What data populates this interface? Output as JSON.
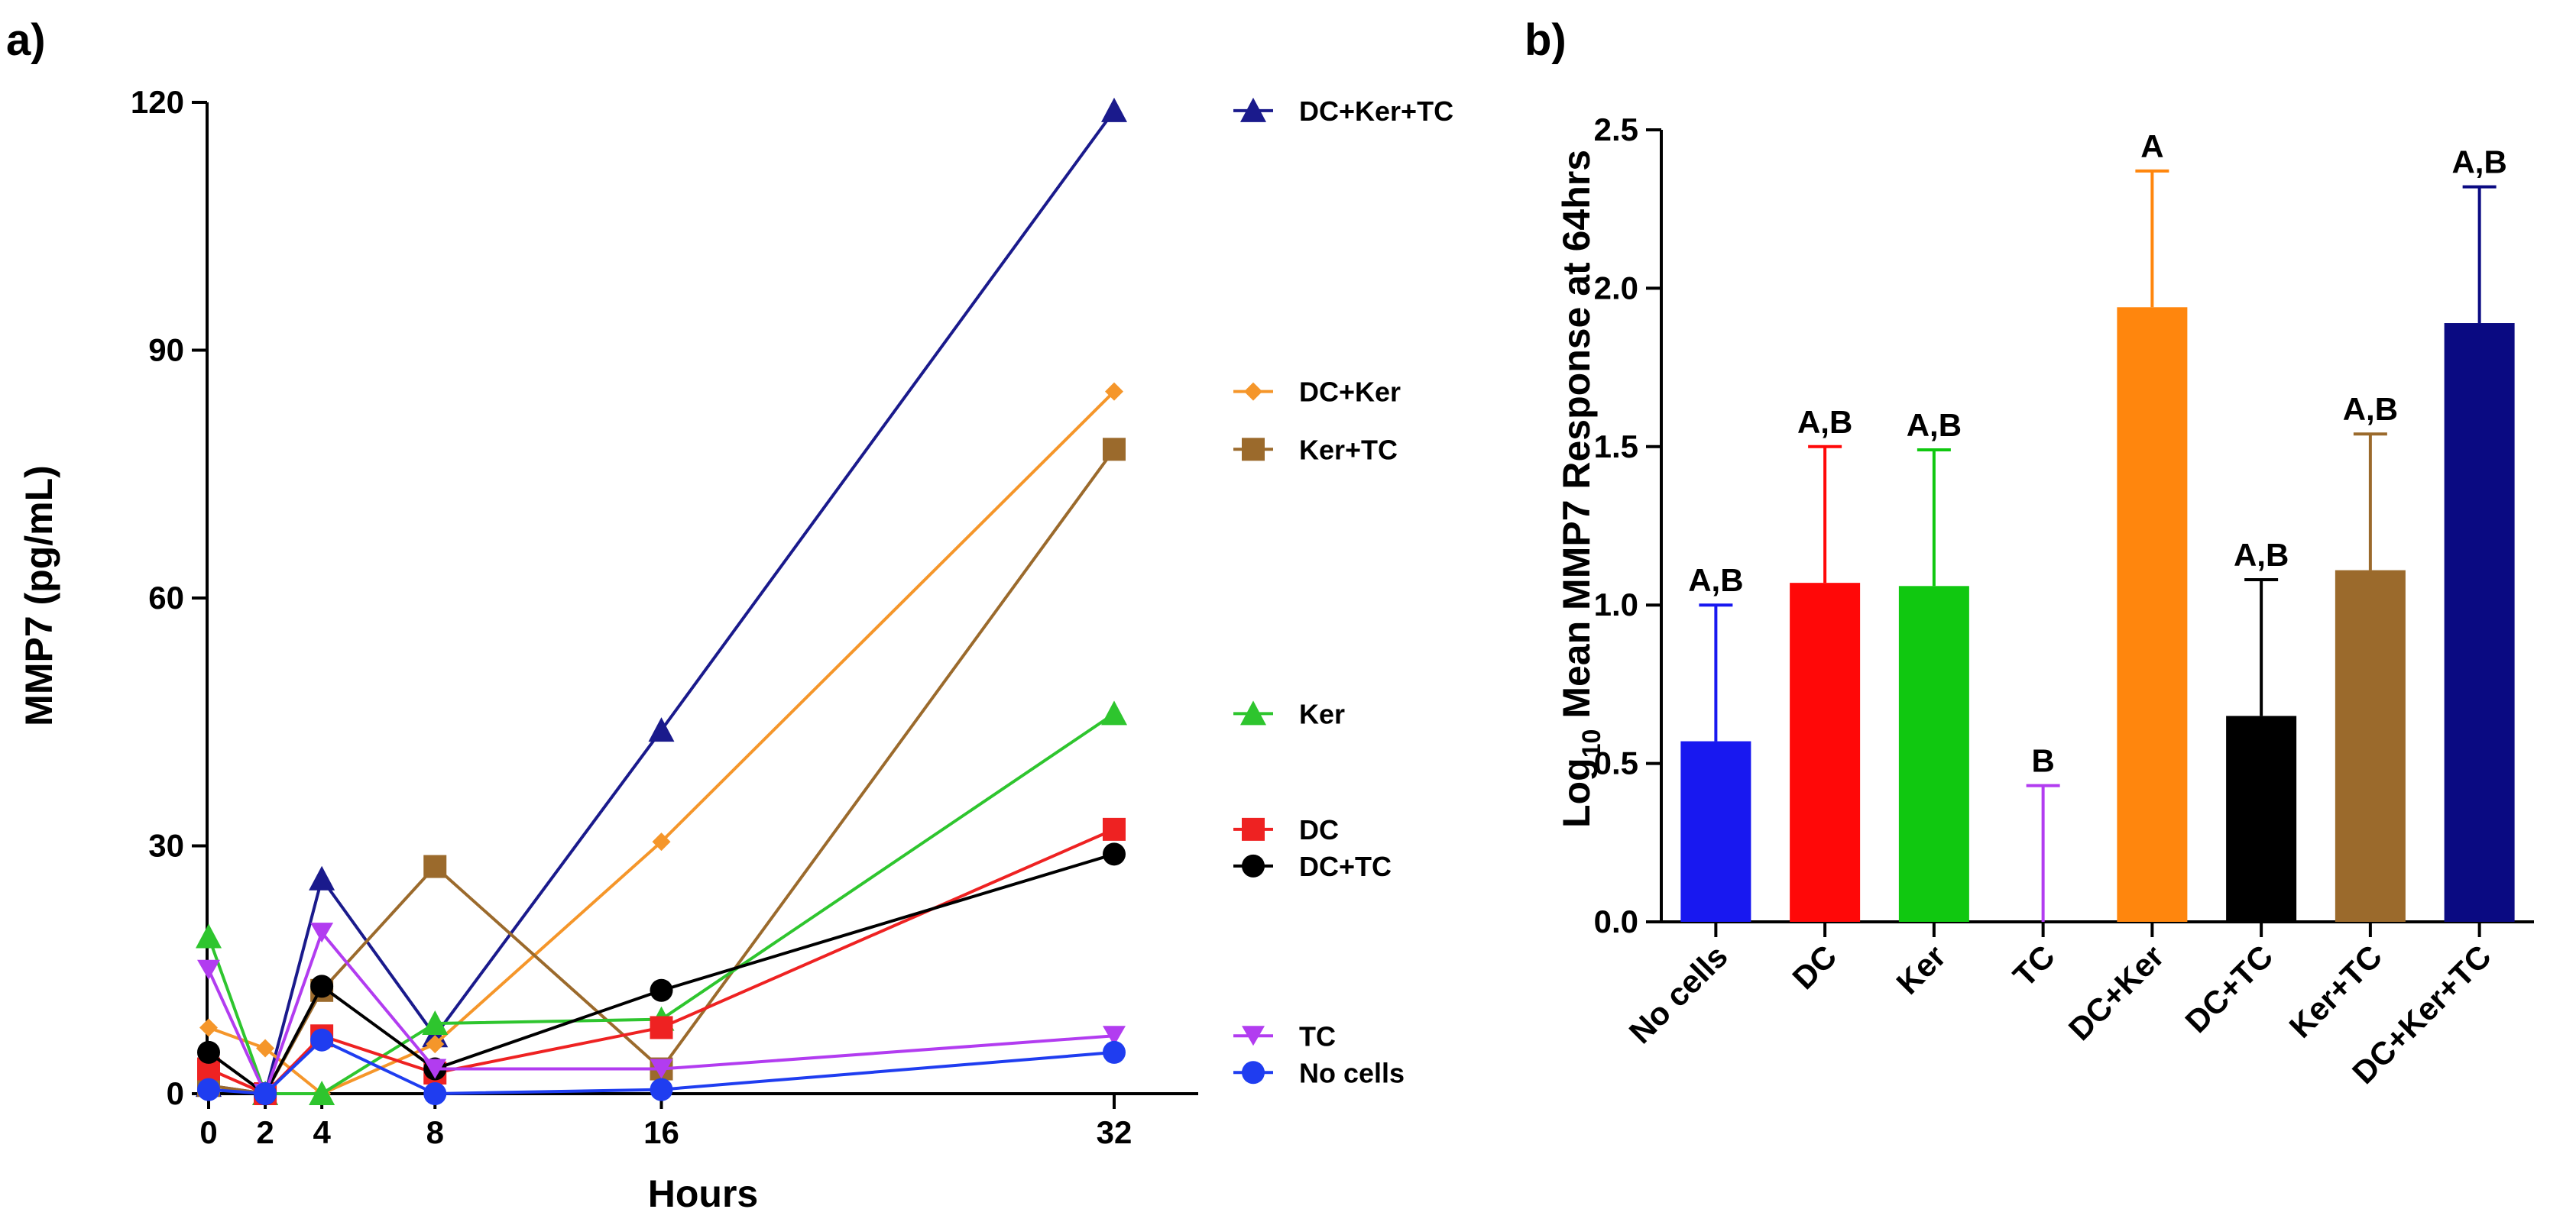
{
  "chart_data": [
    {
      "type": "line",
      "panel_label": "a)",
      "xlabel": "Hours",
      "ylabel": "MMP7 (pg/mL)",
      "x": [
        0,
        2,
        4,
        8,
        16,
        32
      ],
      "x_ticks": [
        "0",
        "2",
        "4",
        "8",
        "16",
        "32"
      ],
      "y_ticks": [
        "0",
        "30",
        "60",
        "90",
        "120"
      ],
      "ylim": [
        0,
        120
      ],
      "legend_placement": "right",
      "series": [
        {
          "name": "DC+Ker+TC",
          "color": "#1a1a8c",
          "marker": "triangle",
          "values": [
            1,
            0,
            26,
            7,
            44,
            119
          ]
        },
        {
          "name": "DC+Ker",
          "color": "#f5962a",
          "marker": "diamond",
          "values": [
            8,
            5.5,
            0,
            6,
            30.5,
            85
          ]
        },
        {
          "name": "Ker+TC",
          "color": "#9b6a2c",
          "marker": "square",
          "values": [
            1,
            0,
            12.5,
            27.5,
            3,
            78
          ]
        },
        {
          "name": "Ker",
          "color": "#2ec52e",
          "marker": "triangle",
          "values": [
            19,
            0,
            0,
            8.5,
            9,
            46
          ]
        },
        {
          "name": "DC",
          "color": "#ee2222",
          "marker": "square",
          "values": [
            3,
            0,
            7,
            2.5,
            8,
            32
          ]
        },
        {
          "name": "DC+TC",
          "color": "#000000",
          "marker": "circle",
          "values": [
            5,
            0,
            13,
            3,
            12.5,
            29
          ]
        },
        {
          "name": "TC",
          "color": "#b23cf0",
          "marker": "triangle-down",
          "values": [
            15,
            0,
            19.5,
            3,
            3,
            7
          ]
        },
        {
          "name": "No cells",
          "color": "#1f3df0",
          "marker": "circle",
          "values": [
            0.5,
            0,
            6.5,
            0,
            0.5,
            5
          ]
        }
      ]
    },
    {
      "type": "bar",
      "panel_label": "b)",
      "ylabel_prefix": "Log",
      "ylabel_sub": "10",
      "ylabel_rest": " Mean MMP7 Response at 64hrs",
      "categories": [
        "No cells",
        "DC",
        "Ker",
        "TC",
        "DC+Ker",
        "DC+TC",
        "Ker+TC",
        "DC+Ker+TC"
      ],
      "values": [
        0.57,
        1.07,
        1.06,
        0.0,
        1.94,
        0.65,
        1.11,
        1.89
      ],
      "errors_upper": [
        1.0,
        1.5,
        1.49,
        0.43,
        2.37,
        1.08,
        1.54,
        2.32
      ],
      "significance": [
        "A,B",
        "A,B",
        "A,B",
        "B",
        "A",
        "A,B",
        "A,B",
        "A,B"
      ],
      "colors": [
        "#1818f0",
        "#ff0808",
        "#10c810",
        "#b23cf0",
        "#ff860d",
        "#000000",
        "#9b6a2c",
        "#0a0a82"
      ],
      "y_ticks": [
        "0.0",
        "0.5",
        "1.0",
        "1.5",
        "2.0",
        "2.5"
      ],
      "ylim": [
        0,
        2.5
      ]
    }
  ]
}
